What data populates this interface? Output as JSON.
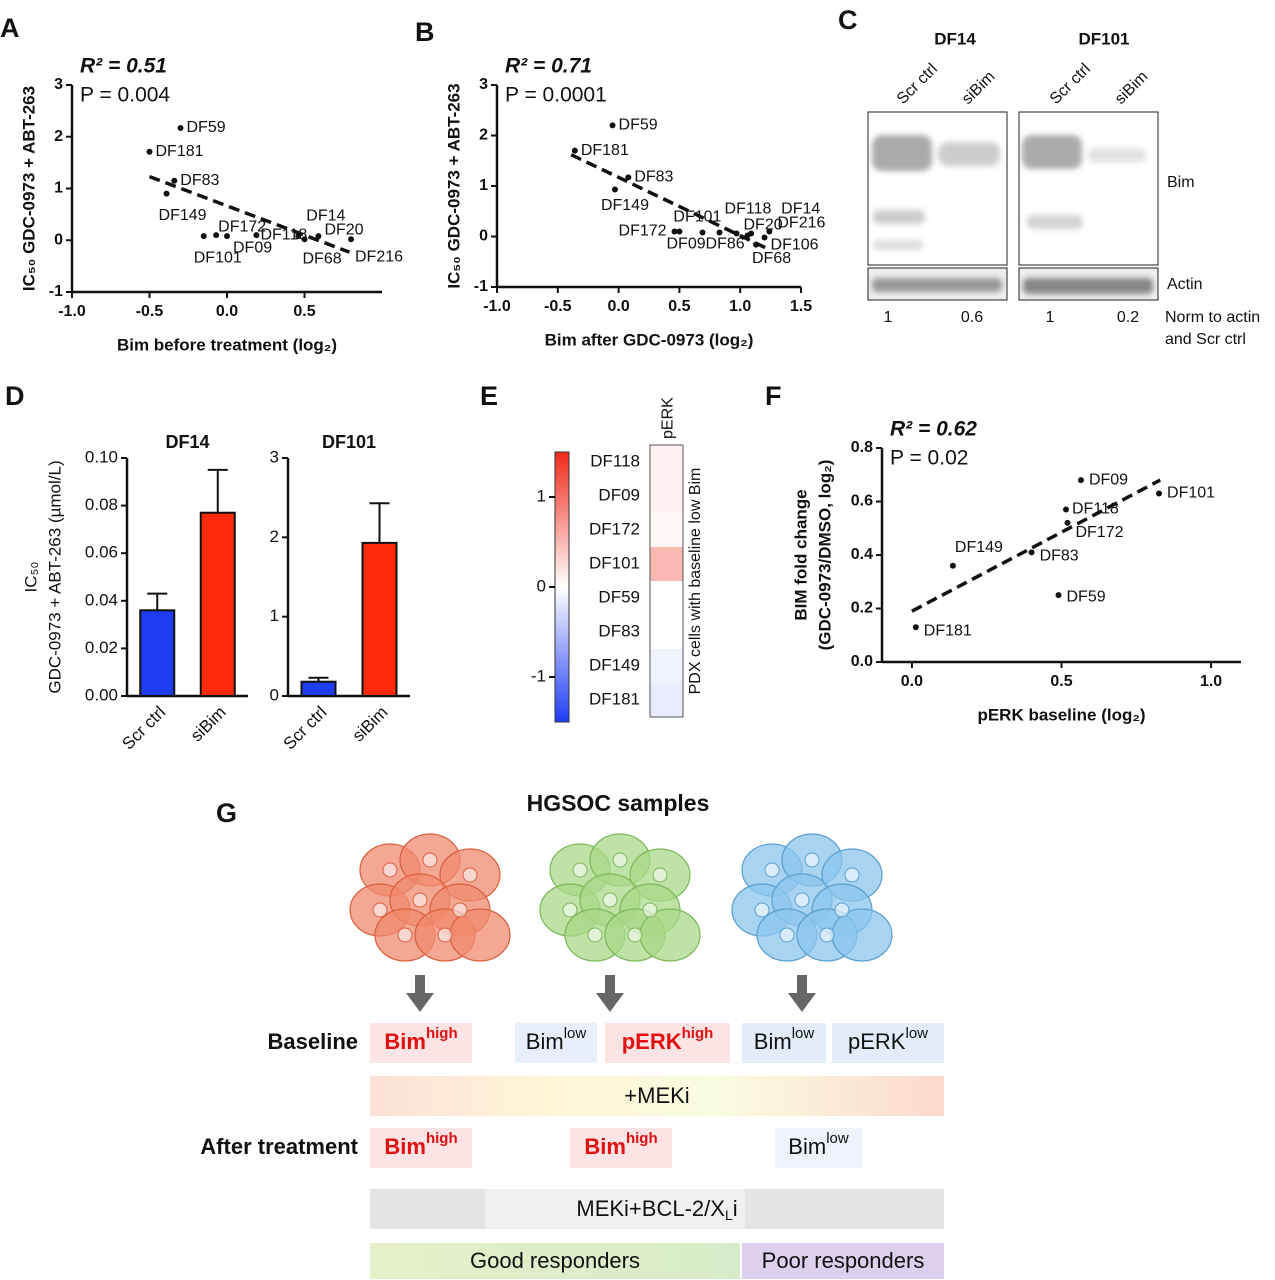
{
  "chart_data": [
    {
      "type": "scatter",
      "panel": "A",
      "stats": [
        "R² = 0.51",
        "P = 0.004"
      ],
      "x_label": "Bim before treatment (log₂)",
      "y_label": "IC₅₀ GDC-0973 + ABT-263",
      "labels": [
        "DF59",
        "DF181",
        "DF83",
        "DF149",
        "DF101",
        "DF172",
        "DF09",
        "DF118",
        "DF14",
        "DF68",
        "DF20",
        "DF216"
      ],
      "x": [
        -0.3,
        -0.5,
        -0.34,
        -0.39,
        -0.15,
        -0.07,
        0.0,
        0.19,
        0.46,
        0.5,
        0.59,
        0.8
      ],
      "y": [
        2.17,
        1.71,
        1.15,
        0.9,
        0.08,
        0.1,
        0.08,
        0.1,
        0.08,
        0.02,
        0.08,
        0.02
      ],
      "color": "#111111",
      "trendline": {
        "x": [
          -0.5,
          0.79
        ],
        "y": [
          1.23,
          -0.23
        ]
      },
      "xlim": [
        -1,
        1
      ],
      "xticks": [
        {
          "value": -1,
          "label": "-1.0"
        },
        {
          "value": -0.5,
          "label": "-0.5"
        },
        {
          "value": 0,
          "label": "0.0"
        },
        {
          "value": 0.5,
          "label": "0.5"
        }
      ],
      "ylim": [
        -1,
        3
      ],
      "yticks": [
        -1,
        0,
        1,
        2,
        3
      ]
    },
    {
      "type": "scatter",
      "panel": "B",
      "stats": [
        "R² = 0.71",
        "P = 0.0001"
      ],
      "x_label": "Bim after GDC-0973 (log₂)",
      "y_label": "IC₅₀ GDC-0973 + ABT-263",
      "labels": [
        "DF59",
        "DF181",
        "DF83",
        "DF149",
        "DF101",
        "DF172",
        "DF09",
        "DF86",
        "DF118",
        "DF20",
        "DF14",
        "DF216",
        "DF106",
        "DF68"
      ],
      "x": [
        -0.05,
        -0.36,
        0.08,
        -0.03,
        0.5,
        0.46,
        0.69,
        0.83,
        0.97,
        1.06,
        1.09,
        1.24,
        1.2,
        1.13
      ],
      "y": [
        2.2,
        1.7,
        1.17,
        0.93,
        0.1,
        0.1,
        0.08,
        0.08,
        0.06,
        0.02,
        0.06,
        0.1,
        -0.02,
        -0.16
      ],
      "color": "#111111",
      "trendline": {
        "x": [
          -0.39,
          1.24
        ],
        "y": [
          1.62,
          -0.26
        ]
      },
      "xlim": [
        -1,
        1.5
      ],
      "xticks": [
        {
          "value": -1,
          "label": "-1.0"
        },
        {
          "value": -0.5,
          "label": "-0.5"
        },
        {
          "value": 0,
          "label": "0.0"
        },
        {
          "value": 0.5,
          "label": "0.5"
        },
        {
          "value": 1,
          "label": "1.0"
        },
        {
          "value": 1.5,
          "label": "1.5"
        }
      ],
      "ylim": [
        -1,
        3
      ],
      "yticks": [
        -1,
        0,
        1,
        2,
        3
      ]
    },
    {
      "type": "bar",
      "panel": "D",
      "title": "DF14",
      "y_label": [
        "IC₅₀",
        "GDC-0973 + ABT-263 (µmol/L)"
      ],
      "categories": [
        "Scr ctrl",
        "siBim"
      ],
      "values": [
        0.036,
        0.077
      ],
      "errors": [
        0.007,
        0.018
      ],
      "colors": [
        "#1f3df5",
        "#ff2a0a"
      ],
      "ylim": [
        0,
        0.1
      ],
      "yticks": [
        {
          "value": 0,
          "label": "0.00"
        },
        {
          "value": 0.02,
          "label": "0.02"
        },
        {
          "value": 0.04,
          "label": "0.04"
        },
        {
          "value": 0.06,
          "label": "0.06"
        },
        {
          "value": 0.08,
          "label": "0.08"
        },
        {
          "value": 0.1,
          "label": "0.10"
        }
      ]
    },
    {
      "type": "bar",
      "title": "DF101",
      "categories": [
        "Scr ctrl",
        "siBim"
      ],
      "values": [
        0.18,
        1.93
      ],
      "errors": [
        0.05,
        0.5
      ],
      "colors": [
        "#1f3df5",
        "#ff2a0a"
      ],
      "ylim": [
        0,
        3
      ],
      "yticks": [
        0,
        1,
        2,
        3
      ]
    },
    {
      "type": "heatmap",
      "panel": "E",
      "column_label": "pERK",
      "side_label": "PDX cells with baseline low Bim",
      "categories": [
        "DF118",
        "DF09",
        "DF172",
        "DF101",
        "DF59",
        "DF83",
        "DF149",
        "DF181"
      ],
      "values": [
        0.1,
        0.1,
        0.05,
        0.5,
        0,
        0,
        -0.1,
        -0.15
      ],
      "clim": [
        -1.5,
        1.5
      ],
      "colorbar_ticks": [
        -1,
        0,
        1
      ],
      "colors": {
        "low": "#1f3df5",
        "mid": "#ffffff",
        "high": "#f02a1a"
      }
    },
    {
      "type": "scatter",
      "panel": "F",
      "stats": [
        "R² = 0.62",
        "P = 0.02"
      ],
      "x_label": "pERK baseline (log₂)",
      "y_label": [
        "BIM fold change",
        "(GDC-0973/DMSO, log₂)"
      ],
      "labels": [
        "DF09",
        "DF101",
        "DF118",
        "DF172",
        "DF149",
        "DF83",
        "DF59",
        "DF181"
      ],
      "x": [
        0.565,
        0.826,
        0.515,
        0.52,
        0.137,
        0.4,
        0.49,
        0.013
      ],
      "y": [
        0.68,
        0.63,
        0.57,
        0.52,
        0.36,
        0.41,
        0.25,
        0.13
      ],
      "color": "#111111",
      "trendline": {
        "x": [
          0,
          0.83
        ],
        "y": [
          0.19,
          0.68
        ]
      },
      "xlim": [
        -0.1,
        1.1
      ],
      "xticks": [
        {
          "value": 0,
          "label": "0.0"
        },
        {
          "value": 0.5,
          "label": "0.5"
        },
        {
          "value": 1,
          "label": "1.0"
        }
      ],
      "ylim": [
        0,
        0.8
      ],
      "yticks": [
        {
          "value": 0,
          "label": "0.0"
        },
        {
          "value": 0.2,
          "label": "0.2"
        },
        {
          "value": 0.4,
          "label": "0.4"
        },
        {
          "value": 0.6,
          "label": "0.6"
        },
        {
          "value": 0.8,
          "label": "0.8"
        }
      ]
    }
  ],
  "blot": {
    "panel": "C",
    "samples": [
      "DF14",
      "DF101"
    ],
    "lanes": [
      "Scr ctrl",
      "siBim",
      "Scr ctrl",
      "siBim"
    ],
    "bands": [
      "Bim",
      "Actin"
    ],
    "norm_values": [
      1,
      0.6,
      1,
      0.2
    ],
    "norm_label": [
      "Norm to actin",
      "and Scr ctrl"
    ]
  },
  "diagram": {
    "panel": "G",
    "title": "HGSOC samples",
    "rows": [
      {
        "label": "Baseline",
        "items": [
          {
            "base": "Bim",
            "sup": "high",
            "highlight": true
          },
          {
            "base": "Bim",
            "sup": "low",
            "highlight": false
          },
          {
            "base": "pERK",
            "sup": "high",
            "highlight": true
          },
          {
            "base": "Bim",
            "sup": "low",
            "highlight": false
          },
          {
            "base": "pERK",
            "sup": "low",
            "highlight": false
          }
        ]
      },
      {
        "label": "After treatment",
        "items": [
          {
            "base": "Bim",
            "sup": "high",
            "highlight": true
          },
          {
            "base": "Bim",
            "sup": "high",
            "highlight": true
          },
          {
            "base": "Bim",
            "sup": "low",
            "highlight": false
          }
        ]
      }
    ],
    "step_1": "+MEKi",
    "step_2": [
      "MEKi+BCL-2/X",
      "L",
      "i"
    ],
    "outcomes": [
      "Good responders",
      "Poor responders"
    ]
  }
}
